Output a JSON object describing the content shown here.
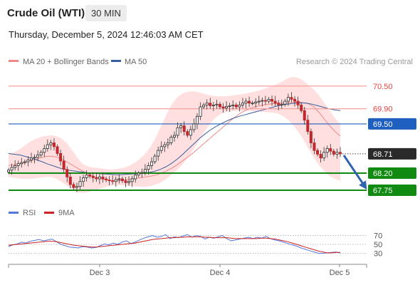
{
  "header": {
    "title": "Crude Oil (WTI)",
    "timeframe": "30 MIN",
    "timestamp": "Thursday, December 5, 2024 12:46:03 AM CET"
  },
  "credit": "Research © 2024 Trading Central",
  "colors": {
    "resistance": "#e8433f",
    "pivot": "#1f5fbf",
    "support": "#108a10",
    "last": "#2a2a2a",
    "bull_candle": "#2b2b2b",
    "bear_candle": "#c0282e",
    "ma20": "#f08a88",
    "ma50": "#3a5fa0",
    "bollinger_fill": "#ffd9d9",
    "rsi": "#5577dd",
    "rsi_ma": "#cc2222"
  },
  "chart_data": [
    {
      "type": "candlestick",
      "legend": [
        {
          "name": "MA 20 + Bollinger Bands",
          "color": "#f08a88"
        },
        {
          "name": "MA 50",
          "color": "#3a5fa0"
        }
      ],
      "x_ticks": [
        "Dec 3",
        "Dec 4",
        "Dec 5"
      ],
      "y_range": [
        67.58,
        70.74
      ],
      "levels": [
        {
          "value": 70.5,
          "label": "70.50",
          "kind": "resistance"
        },
        {
          "value": 69.9,
          "label": "69.90",
          "kind": "resistance"
        },
        {
          "value": 69.5,
          "label": "69.50",
          "kind": "pivot"
        },
        {
          "value": 68.71,
          "label": "68.71",
          "kind": "last"
        },
        {
          "value": 68.2,
          "label": "68.20",
          "kind": "support"
        },
        {
          "value": 67.75,
          "label": "67.75",
          "kind": "support"
        }
      ],
      "close": [
        68.28,
        68.35,
        68.4,
        68.45,
        68.48,
        68.5,
        68.55,
        68.6,
        68.62,
        68.68,
        68.75,
        68.85,
        68.95,
        69.0,
        68.9,
        68.72,
        68.52,
        68.3,
        68.1,
        67.9,
        67.82,
        67.85,
        67.98,
        68.08,
        68.15,
        68.12,
        68.08,
        68.05,
        68.1,
        68.05,
        68.02,
        68.0,
        67.98,
        68.03,
        68.05,
        68.0,
        67.95,
        67.98,
        68.05,
        68.15,
        68.2,
        68.22,
        68.3,
        68.4,
        68.5,
        68.65,
        68.8,
        68.9,
        68.95,
        69.0,
        69.15,
        69.2,
        69.4,
        69.45,
        69.3,
        69.2,
        69.35,
        69.5,
        69.7,
        69.95,
        70.0,
        70.05,
        69.98,
        70.0,
        70.02,
        69.95,
        69.92,
        69.96,
        69.98,
        70.0,
        69.95,
        70.0,
        70.05,
        70.1,
        70.05,
        70.05,
        70.08,
        70.1,
        70.12,
        70.1,
        70.15,
        70.1,
        70.05,
        70.0,
        70.02,
        70.1,
        70.2,
        70.15,
        70.1,
        70.0,
        69.85,
        69.6,
        69.3,
        69.0,
        68.8,
        68.7,
        68.6,
        68.75,
        68.85,
        68.78,
        68.7,
        68.75,
        68.71
      ],
      "ma20": [
        68.4,
        68.42,
        68.45,
        68.48,
        68.52,
        68.56,
        68.6,
        68.64,
        68.65,
        68.63,
        68.58,
        68.5,
        68.42,
        68.34,
        68.26,
        68.19,
        68.13,
        68.08,
        68.04,
        68.01,
        68.0,
        68.0,
        68.02,
        68.04,
        68.06,
        68.08,
        68.1,
        68.12,
        68.15,
        68.2,
        68.26,
        68.33,
        68.42,
        68.52,
        68.62,
        68.73,
        68.85,
        68.97,
        69.09,
        69.21,
        69.33,
        69.45,
        69.57,
        69.68,
        69.78,
        69.86,
        69.92,
        69.96,
        69.99,
        70.01,
        70.03,
        70.04,
        70.05,
        70.06,
        70.07,
        70.08,
        70.06,
        70.03,
        69.95,
        69.8,
        69.62,
        69.45,
        69.3,
        69.18
      ],
      "bb_upper": [
        68.7,
        68.75,
        68.82,
        68.92,
        69.02,
        69.1,
        69.15,
        69.18,
        69.2,
        69.18,
        69.12,
        69.0,
        68.82,
        68.62,
        68.45,
        68.38,
        68.35,
        68.34,
        68.32,
        68.3,
        68.3,
        68.32,
        68.35,
        68.4,
        68.48,
        68.58,
        68.72,
        68.9,
        69.15,
        69.45,
        69.75,
        70.02,
        70.2,
        70.3,
        70.35,
        70.36,
        70.34,
        70.3,
        70.26,
        70.24,
        70.23,
        70.23,
        70.24,
        70.26,
        70.28,
        70.3,
        70.33,
        70.36,
        70.4,
        70.45,
        70.5,
        70.55,
        70.62,
        70.7,
        70.74,
        70.72,
        70.64,
        70.52,
        70.4,
        70.25,
        70.05,
        69.85,
        69.65,
        69.5
      ],
      "bb_lower": [
        68.1,
        68.08,
        68.06,
        68.05,
        68.05,
        68.06,
        68.08,
        68.1,
        68.1,
        68.06,
        67.98,
        67.88,
        67.78,
        67.7,
        67.68,
        67.7,
        67.73,
        67.77,
        67.82,
        67.86,
        67.88,
        67.88,
        67.87,
        67.86,
        67.85,
        67.84,
        67.84,
        67.86,
        67.9,
        67.96,
        68.05,
        68.16,
        68.28,
        68.42,
        68.6,
        68.8,
        69.02,
        69.25,
        69.46,
        69.62,
        69.74,
        69.8,
        69.83,
        69.84,
        69.84,
        69.84,
        69.84,
        69.83,
        69.82,
        69.81,
        69.8,
        69.78,
        69.72,
        69.62,
        69.48,
        69.3,
        69.08,
        68.84,
        68.6,
        68.4,
        68.25,
        68.12,
        68.05,
        68.0
      ],
      "ma50": [
        68.72,
        68.7,
        68.68,
        68.64,
        68.6,
        68.55,
        68.5,
        68.44,
        68.39,
        68.34,
        68.3,
        68.27,
        68.25,
        68.23,
        68.21,
        68.2,
        68.19,
        68.18,
        68.17,
        68.16,
        68.16,
        68.17,
        68.18,
        68.19,
        68.2,
        68.22,
        68.25,
        68.3,
        68.37,
        68.46,
        68.57,
        68.7,
        68.84,
        68.98,
        69.12,
        69.24,
        69.35,
        69.44,
        69.52,
        69.59,
        69.65,
        69.7,
        69.74,
        69.78,
        69.82,
        69.86,
        69.9,
        69.94,
        69.98,
        70.01,
        70.03,
        70.05,
        70.06,
        70.05,
        70.02,
        69.98,
        69.94,
        69.9,
        69.87,
        69.85
      ]
    },
    {
      "type": "line",
      "legend": [
        {
          "name": "RSI",
          "color": "#5577dd"
        },
        {
          "name": "9MA",
          "color": "#cc2222"
        }
      ],
      "y_ticks": [
        "70",
        "50",
        "30"
      ],
      "y_range": [
        10,
        90
      ],
      "series": [
        {
          "name": "RSI",
          "values": [
            45,
            49,
            51,
            55,
            53,
            57,
            59,
            61,
            58,
            60,
            62,
            56,
            50,
            47,
            44,
            43,
            42,
            45,
            44,
            42,
            43,
            47,
            51,
            49,
            53,
            50,
            55,
            58,
            52,
            55,
            60,
            64,
            67,
            70,
            66,
            68,
            72,
            63,
            67,
            65,
            69,
            72,
            66,
            70,
            68,
            62,
            66,
            64,
            67,
            70,
            63,
            58,
            60,
            62,
            64,
            66,
            63,
            66,
            64,
            68,
            63,
            60,
            58,
            55,
            52,
            49,
            46,
            42,
            39,
            36,
            33,
            30,
            30,
            31,
            32,
            33,
            31
          ]
        },
        {
          "name": "9MA",
          "values": [
            48,
            49,
            50,
            51,
            52,
            53,
            54,
            55,
            56,
            57,
            57,
            56,
            54,
            52,
            50,
            48,
            47,
            46,
            45,
            44,
            44,
            45,
            46,
            47,
            48,
            49,
            50,
            51,
            52,
            53,
            55,
            57,
            59,
            61,
            62,
            63,
            64,
            65,
            65,
            66,
            66,
            67,
            67,
            67,
            67,
            66,
            66,
            65,
            65,
            65,
            65,
            64,
            63,
            63,
            63,
            63,
            63,
            63,
            64,
            64,
            63,
            62,
            60,
            58,
            56,
            53,
            50,
            47,
            44,
            41,
            38,
            35,
            33,
            31,
            31,
            32,
            32
          ]
        }
      ]
    }
  ]
}
